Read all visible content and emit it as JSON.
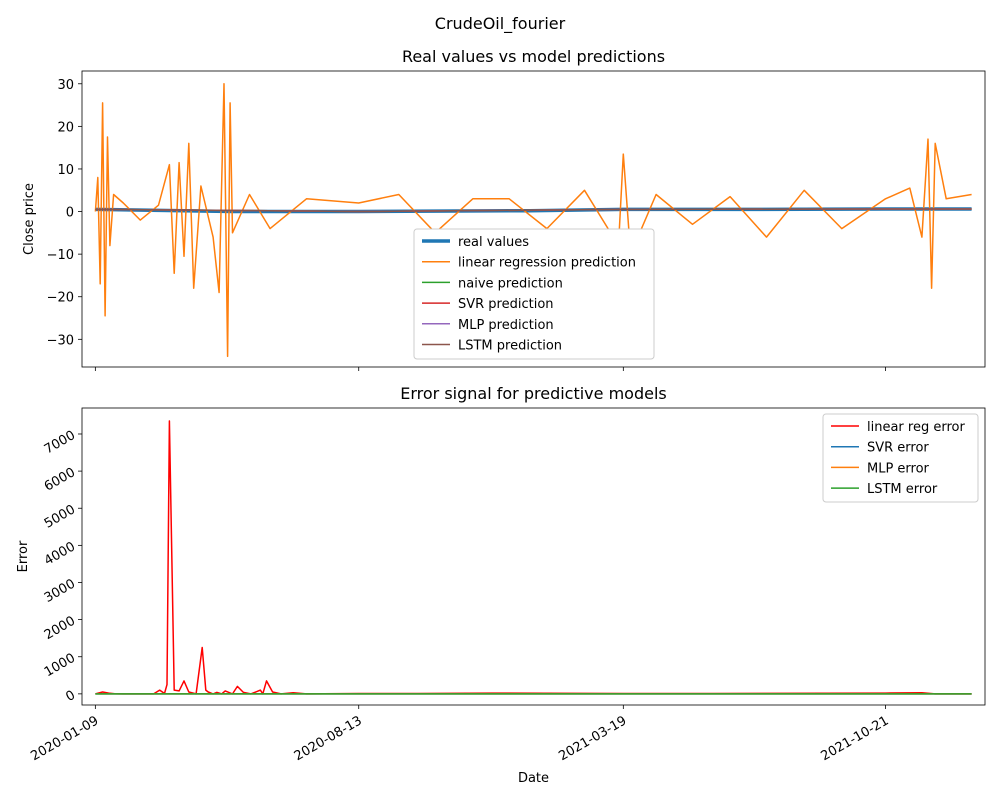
{
  "suptitle": "CrudeOil_fourier",
  "chart_data": [
    {
      "type": "line",
      "title": "Real values vs model predictions",
      "xlabel": "",
      "ylabel": "Close price",
      "ylim": [
        -36.5,
        33
      ],
      "xlim": [
        "2019-12-29",
        "2022-01-11"
      ],
      "yticks": [
        -30,
        -20,
        -10,
        0,
        10,
        20,
        30
      ],
      "yticklabels": [
        "−30",
        "−20",
        "−10",
        "0",
        "10",
        "20",
        "30"
      ],
      "xticks": [
        "2020-01-09",
        "2020-08-13",
        "2021-03-19",
        "2021-10-21"
      ],
      "legend_position": "lower-center",
      "grid": false,
      "series": [
        {
          "name": "real values",
          "color": "#1f77b4",
          "linewidth": 3.5,
          "x": [
            "2020-01-09",
            "2020-05-01",
            "2020-08-13",
            "2021-01-01",
            "2021-03-19",
            "2021-07-01",
            "2021-10-21",
            "2021-12-31"
          ],
          "values": [
            0.5,
            0.0,
            0.0,
            0.2,
            0.5,
            0.5,
            0.6,
            0.6
          ]
        },
        {
          "name": "linear regression prediction",
          "color": "#ff7f0e",
          "linewidth": 1.5,
          "x": [
            "2020-01-09",
            "2020-01-11",
            "2020-01-13",
            "2020-01-15",
            "2020-01-17",
            "2020-01-19",
            "2020-01-21",
            "2020-01-24",
            "2020-02-01",
            "2020-02-15",
            "2020-03-01",
            "2020-03-10",
            "2020-03-14",
            "2020-03-18",
            "2020-03-22",
            "2020-03-26",
            "2020-03-30",
            "2020-04-05",
            "2020-04-15",
            "2020-04-20",
            "2020-04-24",
            "2020-04-27",
            "2020-04-29",
            "2020-05-01",
            "2020-05-15",
            "2020-06-01",
            "2020-07-01",
            "2020-08-13",
            "2020-09-15",
            "2020-10-15",
            "2020-11-15",
            "2020-12-15",
            "2021-01-15",
            "2021-02-15",
            "2021-03-15",
            "2021-03-19",
            "2021-03-25",
            "2021-04-15",
            "2021-05-15",
            "2021-06-15",
            "2021-07-15",
            "2021-08-15",
            "2021-09-15",
            "2021-10-21",
            "2021-11-10",
            "2021-11-20",
            "2021-11-25",
            "2021-11-28",
            "2021-12-01",
            "2021-12-10",
            "2021-12-31"
          ],
          "values": [
            0,
            8,
            -17,
            25.5,
            -24.5,
            17.5,
            -8,
            4,
            2,
            -2,
            1.5,
            11,
            -14.5,
            11.5,
            -10.5,
            16,
            -18,
            6,
            -6,
            -19,
            30,
            -34,
            25.5,
            -5,
            4,
            -4,
            3,
            2,
            4,
            -5,
            3,
            3,
            -4,
            5,
            -8,
            13.5,
            -10,
            4,
            -3,
            3.5,
            -6,
            5,
            -4,
            3,
            5.5,
            -6,
            17,
            -18,
            16,
            3,
            4
          ]
        },
        {
          "name": "naive prediction",
          "color": "#2ca02c",
          "linewidth": 1.5,
          "x": [
            "2020-01-09",
            "2020-08-13",
            "2021-03-19",
            "2021-10-21",
            "2021-12-31"
          ],
          "values": [
            0.5,
            0.0,
            0.5,
            0.6,
            0.6
          ]
        },
        {
          "name": "SVR prediction",
          "color": "#d62728",
          "linewidth": 1.5,
          "x": [
            "2020-01-09",
            "2020-08-13",
            "2021-03-19",
            "2021-10-21",
            "2021-12-31"
          ],
          "values": [
            0.5,
            0.0,
            0.5,
            0.6,
            0.6
          ]
        },
        {
          "name": "MLP prediction",
          "color": "#9467bd",
          "linewidth": 1.5,
          "x": [
            "2020-01-09",
            "2020-08-13",
            "2021-03-19",
            "2021-10-21",
            "2021-12-31"
          ],
          "values": [
            0.5,
            0.0,
            0.5,
            0.6,
            0.6
          ]
        },
        {
          "name": "LSTM prediction",
          "color": "#8c564b",
          "linewidth": 1.5,
          "x": [
            "2020-01-09",
            "2020-08-13",
            "2021-03-19",
            "2021-10-21",
            "2021-12-31"
          ],
          "values": [
            0.5,
            0.0,
            0.5,
            0.6,
            0.6
          ]
        }
      ]
    },
    {
      "type": "line",
      "title": "Error signal for predictive models",
      "xlabel": "Date",
      "ylabel": "Error",
      "ylim": [
        -300,
        7700
      ],
      "xlim": [
        "2019-12-29",
        "2022-01-11"
      ],
      "yticks": [
        0,
        1000,
        2000,
        3000,
        4000,
        5000,
        6000,
        7000
      ],
      "yticklabels": [
        "0",
        "1000",
        "2000",
        "3000",
        "4000",
        "5000",
        "6000",
        "7000"
      ],
      "xticks": [
        "2020-01-09",
        "2020-08-13",
        "2021-03-19",
        "2021-10-21"
      ],
      "legend_position": "top-right",
      "grid": false,
      "series": [
        {
          "name": "linear reg error",
          "color": "#ff0000",
          "linewidth": 1.5,
          "x": [
            "2020-01-09",
            "2020-01-15",
            "2020-01-20",
            "2020-01-25",
            "2020-02-01",
            "2020-02-15",
            "2020-02-26",
            "2020-03-02",
            "2020-03-06",
            "2020-03-08",
            "2020-03-10",
            "2020-03-14",
            "2020-03-18",
            "2020-03-22",
            "2020-03-26",
            "2020-04-01",
            "2020-04-06",
            "2020-04-09",
            "2020-04-11",
            "2020-04-15",
            "2020-04-18",
            "2020-04-22",
            "2020-04-25",
            "2020-05-01",
            "2020-05-05",
            "2020-05-10",
            "2020-05-16",
            "2020-05-21",
            "2020-05-24",
            "2020-05-26",
            "2020-05-29",
            "2020-06-03",
            "2020-06-10",
            "2020-06-20",
            "2020-07-01",
            "2020-08-13",
            "2020-10-01",
            "2020-12-01",
            "2021-03-19",
            "2021-06-01",
            "2021-10-21",
            "2021-11-20",
            "2021-12-01",
            "2021-12-31"
          ],
          "values": [
            0,
            50,
            20,
            5,
            0,
            0,
            0,
            100,
            10,
            250,
            7350,
            100,
            80,
            350,
            50,
            0,
            1250,
            100,
            50,
            0,
            40,
            0,
            80,
            0,
            200,
            40,
            0,
            60,
            100,
            0,
            350,
            50,
            0,
            30,
            0,
            10,
            10,
            20,
            10,
            10,
            20,
            30,
            0,
            0
          ]
        },
        {
          "name": "SVR error",
          "color": "#1f77b4",
          "linewidth": 1.5,
          "x": [
            "2020-01-09",
            "2021-12-31"
          ],
          "values": [
            0,
            0
          ]
        },
        {
          "name": "MLP error",
          "color": "#ff7f0e",
          "linewidth": 1.5,
          "x": [
            "2020-01-09",
            "2021-12-31"
          ],
          "values": [
            0,
            0
          ]
        },
        {
          "name": "LSTM error",
          "color": "#2ca02c",
          "linewidth": 1.5,
          "x": [
            "2020-01-09",
            "2021-12-31"
          ],
          "values": [
            0,
            0
          ]
        }
      ]
    }
  ]
}
